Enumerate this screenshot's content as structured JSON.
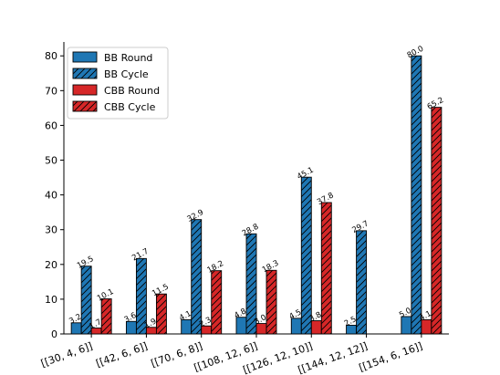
{
  "chart_data": {
    "type": "bar",
    "title": "",
    "xlabel": "",
    "ylabel": "",
    "ylim": [
      0,
      84
    ],
    "yticks": [
      0,
      10,
      20,
      30,
      40,
      50,
      60,
      70,
      80
    ],
    "categories": [
      "[[30, 4, 6]]",
      "[[42, 6, 6]]",
      "[[70, 6, 8]]",
      "[[108, 12, 6]]",
      "[[126, 12, 10]]",
      "[[144, 12, 12]]",
      "[[154, 6, 16]]"
    ],
    "legend_position": "top-left",
    "series": [
      {
        "name": "BB Round",
        "color": "#1f77b4",
        "hatch": false,
        "values": [
          3.2,
          3.6,
          4.1,
          4.8,
          4.5,
          2.5,
          5.0
        ],
        "labels": [
          "3.2",
          "3.6",
          "4.1",
          "4.8",
          "4.5",
          "2.5",
          "5.0"
        ]
      },
      {
        "name": "BB Cycle",
        "color": "#1f77b4",
        "hatch": true,
        "values": [
          19.5,
          21.7,
          32.9,
          28.8,
          45.1,
          29.7,
          80.0
        ],
        "labels": [
          "19.5",
          "21.7",
          "32.9",
          "28.8",
          "45.1",
          "29.7",
          "80.0"
        ]
      },
      {
        "name": "CBB Round",
        "color": "#d62728",
        "hatch": false,
        "values": [
          1.7,
          1.9,
          2.3,
          3.0,
          3.8,
          null,
          4.1
        ],
        "labels": [
          "1.7",
          "1.9",
          "2.3",
          "3.0",
          "3.8",
          null,
          "4.1"
        ]
      },
      {
        "name": "CBB Cycle",
        "color": "#d62728",
        "hatch": true,
        "values": [
          10.1,
          11.5,
          18.2,
          18.3,
          37.8,
          null,
          65.2
        ],
        "labels": [
          "10.1",
          "11.5",
          "18.2",
          "18.3",
          "37.8",
          null,
          "65.2"
        ]
      }
    ]
  }
}
